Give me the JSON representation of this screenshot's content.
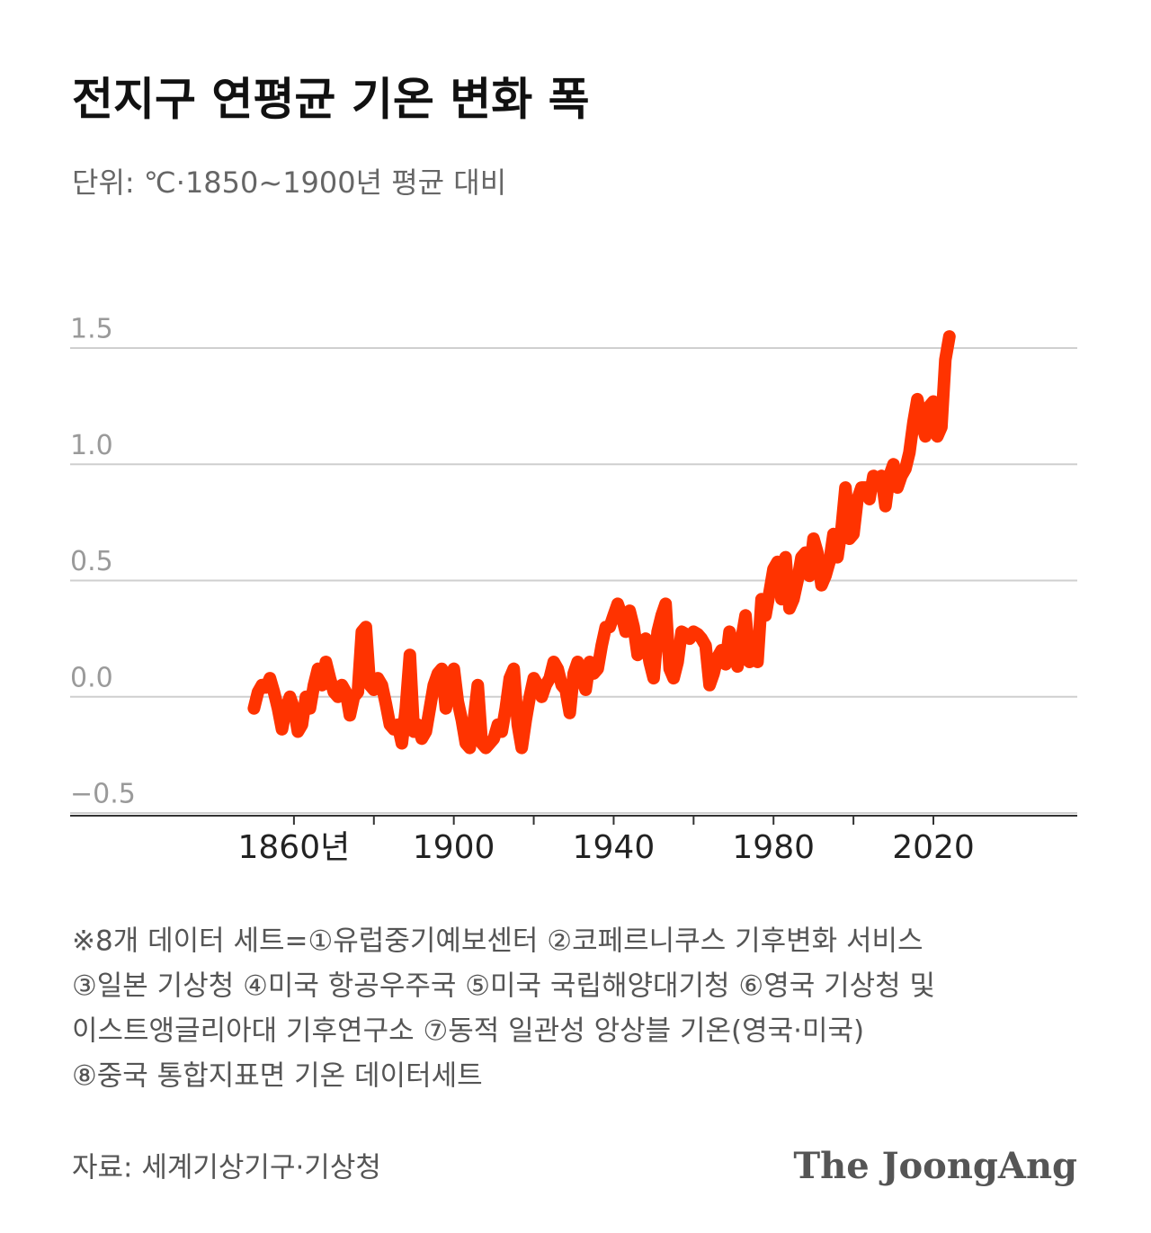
{
  "chart_data": {
    "type": "line",
    "title": "전지구 연평균 기온 변화 폭",
    "subtitle": "단위: ℃·1850~1900년 평균 대비",
    "x": [
      1850,
      1851,
      1852,
      1853,
      1854,
      1855,
      1856,
      1857,
      1858,
      1859,
      1860,
      1861,
      1862,
      1863,
      1864,
      1865,
      1866,
      1867,
      1868,
      1869,
      1870,
      1871,
      1872,
      1873,
      1874,
      1875,
      1876,
      1877,
      1878,
      1879,
      1880,
      1881,
      1882,
      1883,
      1884,
      1885,
      1886,
      1887,
      1888,
      1889,
      1890,
      1891,
      1892,
      1893,
      1894,
      1895,
      1896,
      1897,
      1898,
      1899,
      1900,
      1901,
      1902,
      1903,
      1904,
      1905,
      1906,
      1907,
      1908,
      1909,
      1910,
      1911,
      1912,
      1913,
      1914,
      1915,
      1916,
      1917,
      1918,
      1919,
      1920,
      1921,
      1922,
      1923,
      1924,
      1925,
      1926,
      1927,
      1928,
      1929,
      1930,
      1931,
      1932,
      1933,
      1934,
      1935,
      1936,
      1937,
      1938,
      1939,
      1940,
      1941,
      1942,
      1943,
      1944,
      1945,
      1946,
      1947,
      1948,
      1949,
      1950,
      1951,
      1952,
      1953,
      1954,
      1955,
      1956,
      1957,
      1958,
      1959,
      1960,
      1961,
      1962,
      1963,
      1964,
      1965,
      1966,
      1967,
      1968,
      1969,
      1970,
      1971,
      1972,
      1973,
      1974,
      1975,
      1976,
      1977,
      1978,
      1979,
      1980,
      1981,
      1982,
      1983,
      1984,
      1985,
      1986,
      1987,
      1988,
      1989,
      1990,
      1991,
      1992,
      1993,
      1994,
      1995,
      1996,
      1997,
      1998,
      1999,
      2000,
      2001,
      2002,
      2003,
      2004,
      2005,
      2006,
      2007,
      2008,
      2009,
      2010,
      2011,
      2012,
      2013,
      2014,
      2015,
      2016,
      2017,
      2018,
      2019,
      2020,
      2021,
      2022,
      2023,
      2024
    ],
    "series": [
      {
        "color": "#ff3300",
        "values": [
          -0.05,
          0.02,
          0.05,
          0.04,
          0.08,
          0.02,
          -0.05,
          -0.14,
          -0.05,
          0.0,
          -0.05,
          -0.15,
          -0.12,
          0.0,
          -0.05,
          0.05,
          0.12,
          0.05,
          0.15,
          0.08,
          0.02,
          0.0,
          0.05,
          0.02,
          -0.08,
          0.0,
          0.02,
          0.28,
          0.3,
          0.05,
          0.03,
          0.08,
          0.05,
          -0.03,
          -0.12,
          -0.14,
          -0.12,
          -0.2,
          -0.05,
          0.18,
          -0.15,
          -0.12,
          -0.18,
          -0.15,
          -0.05,
          0.05,
          0.1,
          0.12,
          -0.05,
          0.08,
          0.12,
          -0.02,
          -0.1,
          -0.2,
          -0.22,
          -0.1,
          0.05,
          -0.2,
          -0.22,
          -0.2,
          -0.18,
          -0.12,
          -0.15,
          -0.05,
          0.08,
          0.12,
          -0.12,
          -0.22,
          -0.1,
          0.0,
          0.08,
          0.05,
          0.0,
          0.05,
          0.08,
          0.15,
          0.12,
          0.05,
          0.03,
          -0.07,
          0.1,
          0.15,
          0.08,
          0.03,
          0.15,
          0.1,
          0.12,
          0.22,
          0.3,
          0.3,
          0.35,
          0.4,
          0.35,
          0.28,
          0.37,
          0.3,
          0.18,
          0.2,
          0.25,
          0.15,
          0.08,
          0.28,
          0.35,
          0.4,
          0.12,
          0.08,
          0.15,
          0.28,
          0.27,
          0.25,
          0.28,
          0.27,
          0.25,
          0.22,
          0.05,
          0.1,
          0.17,
          0.2,
          0.14,
          0.28,
          0.2,
          0.13,
          0.25,
          0.35,
          0.15,
          0.2,
          0.15,
          0.42,
          0.35,
          0.45,
          0.55,
          0.58,
          0.42,
          0.6,
          0.38,
          0.42,
          0.5,
          0.6,
          0.62,
          0.52,
          0.68,
          0.62,
          0.48,
          0.52,
          0.58,
          0.7,
          0.6,
          0.72,
          0.9,
          0.68,
          0.7,
          0.85,
          0.9,
          0.9,
          0.85,
          0.95,
          0.92,
          0.95,
          0.82,
          0.95,
          1.0,
          0.9,
          0.95,
          0.98,
          1.05,
          1.18,
          1.28,
          1.18,
          1.12,
          1.25,
          1.27,
          1.12,
          1.16,
          1.45,
          1.55
        ]
      }
    ],
    "xlim": [
      1804,
      2056
    ],
    "xticks": [
      {
        "value": 1860,
        "label": "1860년"
      },
      1900,
      1940,
      1980,
      2020
    ],
    "xminorticks": [
      1880,
      1920,
      1960,
      2000
    ],
    "ylim": [
      -0.5,
      1.5
    ],
    "yticks": [
      {
        "value": -0.5,
        "label": "−0.5"
      },
      {
        "value": 0,
        "label": "0.0"
      },
      0.5,
      {
        "value": 1,
        "label": "1.0"
      },
      1.5
    ],
    "grid": true,
    "notes": [
      "※8개 데이터 세트=①유럽중기예보센터 ②코페르니쿠스 기후변화 서비스",
      "③일본 기상청 ④미국 항공우주국 ⑤미국 국립해양대기청 ⑥영국 기상청 및",
      "이스트앵글리아대 기후연구소 ⑦동적 일관성 앙상블 기온(영국·미국)",
      "⑧중국 통합지표면 기온 데이터세트"
    ],
    "source": "자료: 세계기상기구·기상청",
    "brand": "The JoongAng"
  }
}
